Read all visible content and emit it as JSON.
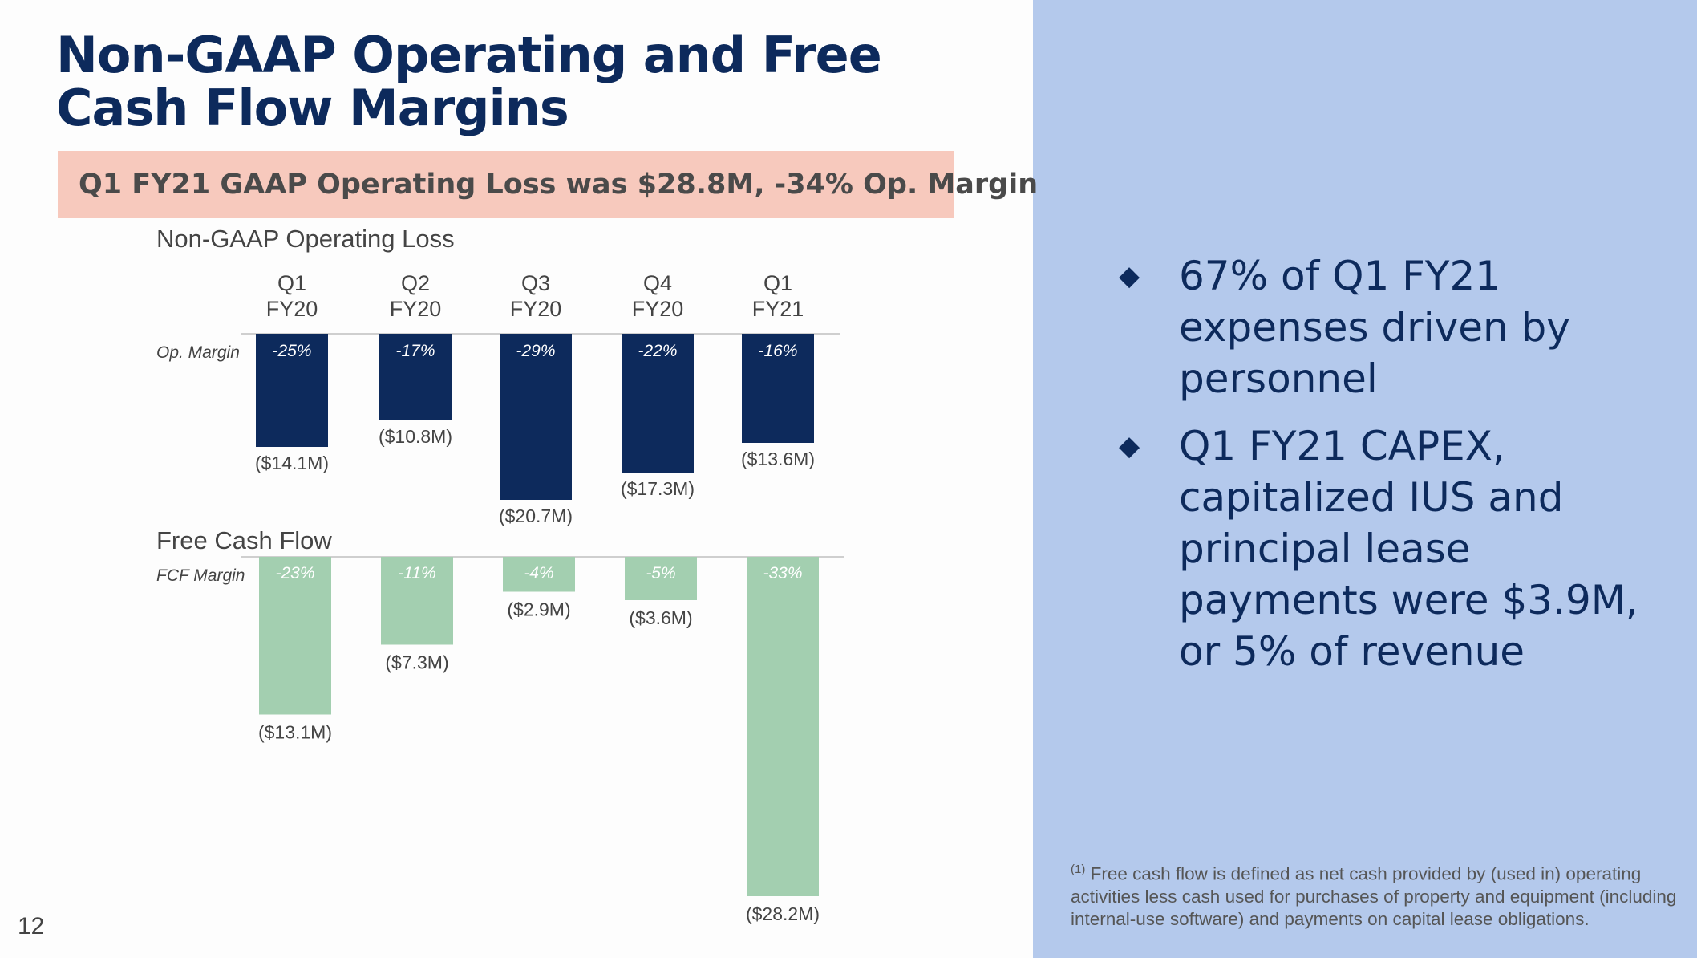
{
  "slide": {
    "title_line1": "Non-GAAP Operating and Free",
    "title_line2": "Cash Flow Margins",
    "banner": "Q1 FY21 GAAP Operating Loss was $28.8M, -34% Op. Margin",
    "page_number": "12",
    "bullets": [
      "67% of Q1 FY21 expenses driven by personnel",
      "Q1 FY21 CAPEX, capitalized IUS and principal lease payments were $3.9M, or 5% of revenue"
    ],
    "footnote_marker": "(1)",
    "footnote": "Free cash flow is defined as net cash provided by (used in) operating activities less cash used for purchases of property and equipment (including internal-use software) and payments on capital lease obligations."
  },
  "colors": {
    "title": "#0d2a5c",
    "banner": "#f7c9bd",
    "panel": "#b4c9ec",
    "op_bar": "#0d2a5c",
    "fcf_bar": "#a3cfb0"
  },
  "chart_data": [
    {
      "type": "bar",
      "title": "Non-GAAP Operating Loss",
      "categories": [
        [
          "Q1",
          "FY20"
        ],
        [
          "Q2",
          "FY20"
        ],
        [
          "Q3",
          "FY20"
        ],
        [
          "Q4",
          "FY20"
        ],
        [
          "Q1",
          "FY21"
        ]
      ],
      "values": [
        -14.1,
        -10.8,
        -20.7,
        -17.3,
        -13.6
      ],
      "value_labels": [
        "($14.1M)",
        "($10.8M)",
        "($20.7M)",
        "($17.3M)",
        "($13.6M)"
      ],
      "margin_label": "Op. Margin",
      "margins": [
        "-25%",
        "-17%",
        "-29%",
        "-22%",
        "-16%"
      ]
    },
    {
      "type": "bar",
      "title": "Free Cash Flow",
      "categories": [
        [
          "Q1",
          "FY20"
        ],
        [
          "Q2",
          "FY20"
        ],
        [
          "Q3",
          "FY20"
        ],
        [
          "Q4",
          "FY20"
        ],
        [
          "Q1",
          "FY21"
        ]
      ],
      "values": [
        -13.1,
        -7.3,
        -2.9,
        -3.6,
        -28.2
      ],
      "value_labels": [
        "($13.1M)",
        "($7.3M)",
        "($2.9M)",
        "($3.6M)",
        "($28.2M)"
      ],
      "margin_label": "FCF Margin",
      "margins": [
        "-23%",
        "-11%",
        "-4%",
        "-5%",
        "-33%"
      ]
    }
  ]
}
